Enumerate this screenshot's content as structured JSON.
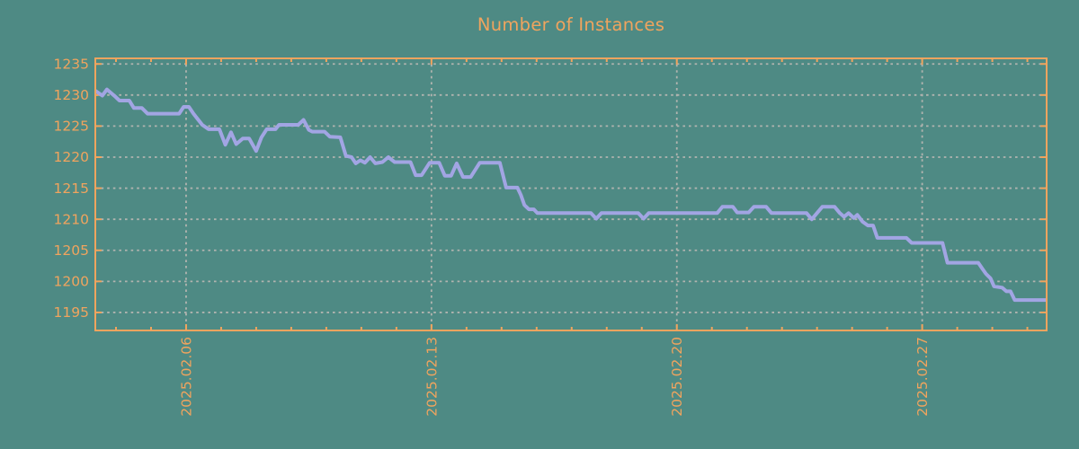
{
  "title": "Number of Instances",
  "colors": {
    "background": "#4e8a84",
    "accent": "#f0a45e",
    "line": "#a2a5e3",
    "grid": "#b1b4af"
  },
  "chart_data": {
    "type": "line",
    "title": "Number of Instances",
    "grid": "dotted",
    "legend": "none",
    "x_axis": {
      "unit": "date (day index of February 2025; 29+ = March 2025)",
      "tick_labels": [
        "2025.02.06",
        "2025.02.13",
        "2025.02.20",
        "2025.02.27"
      ],
      "tick_days": [
        6,
        13,
        20,
        27
      ],
      "minor_tick_interval_days": 1,
      "range_days": [
        3.41,
        30.55
      ]
    },
    "y_axis": {
      "ticks": [
        1195,
        1200,
        1205,
        1210,
        1215,
        1220,
        1225,
        1230,
        1235
      ],
      "range": [
        1192.1,
        1235.9
      ]
    },
    "series": [
      {
        "name": "instances",
        "points": [
          [
            3.41,
            1230.7
          ],
          [
            3.61,
            1229.9
          ],
          [
            3.74,
            1230.9
          ],
          [
            3.97,
            1229.8
          ],
          [
            4.1,
            1229.1
          ],
          [
            4.38,
            1229.1
          ],
          [
            4.51,
            1227.9
          ],
          [
            4.74,
            1227.9
          ],
          [
            4.9,
            1227.0
          ],
          [
            5.8,
            1227.0
          ],
          [
            5.93,
            1228.1
          ],
          [
            6.08,
            1228.1
          ],
          [
            6.21,
            1227.0
          ],
          [
            6.46,
            1225.2
          ],
          [
            6.64,
            1224.5
          ],
          [
            6.95,
            1224.5
          ],
          [
            7.12,
            1222.0
          ],
          [
            7.28,
            1224.0
          ],
          [
            7.43,
            1222.1
          ],
          [
            7.62,
            1223.0
          ],
          [
            7.8,
            1223.0
          ],
          [
            8.0,
            1221.0
          ],
          [
            8.15,
            1223.2
          ],
          [
            8.3,
            1224.5
          ],
          [
            8.55,
            1224.5
          ],
          [
            8.65,
            1225.2
          ],
          [
            9.2,
            1225.2
          ],
          [
            9.35,
            1226.0
          ],
          [
            9.5,
            1224.4
          ],
          [
            9.6,
            1224.1
          ],
          [
            9.95,
            1224.1
          ],
          [
            10.1,
            1223.3
          ],
          [
            10.4,
            1223.2
          ],
          [
            10.56,
            1220.2
          ],
          [
            10.72,
            1220.0
          ],
          [
            10.84,
            1219.0
          ],
          [
            10.97,
            1219.5
          ],
          [
            11.1,
            1219.1
          ],
          [
            11.25,
            1220.0
          ],
          [
            11.4,
            1219.0
          ],
          [
            11.6,
            1219.2
          ],
          [
            11.77,
            1220.0
          ],
          [
            11.95,
            1219.2
          ],
          [
            12.4,
            1219.2
          ],
          [
            12.55,
            1217.1
          ],
          [
            12.72,
            1217.1
          ],
          [
            12.95,
            1219.1
          ],
          [
            13.22,
            1219.1
          ],
          [
            13.38,
            1217.0
          ],
          [
            13.56,
            1217.0
          ],
          [
            13.72,
            1219.0
          ],
          [
            13.9,
            1216.8
          ],
          [
            14.12,
            1216.8
          ],
          [
            14.38,
            1219.1
          ],
          [
            14.95,
            1219.1
          ],
          [
            15.13,
            1215.1
          ],
          [
            15.45,
            1215.1
          ],
          [
            15.55,
            1213.9
          ],
          [
            15.65,
            1212.3
          ],
          [
            15.78,
            1211.6
          ],
          [
            15.92,
            1211.6
          ],
          [
            16.02,
            1211.0
          ],
          [
            17.55,
            1211.0
          ],
          [
            17.7,
            1210.1
          ],
          [
            17.85,
            1211.0
          ],
          [
            18.9,
            1211.0
          ],
          [
            19.05,
            1210.1
          ],
          [
            19.2,
            1211.0
          ],
          [
            21.15,
            1211.0
          ],
          [
            21.3,
            1212.0
          ],
          [
            21.6,
            1212.0
          ],
          [
            21.72,
            1211.1
          ],
          [
            22.05,
            1211.1
          ],
          [
            22.2,
            1212.0
          ],
          [
            22.55,
            1212.0
          ],
          [
            22.7,
            1211.0
          ],
          [
            23.7,
            1211.0
          ],
          [
            23.85,
            1210.0
          ],
          [
            24.15,
            1212.0
          ],
          [
            24.5,
            1212.0
          ],
          [
            24.65,
            1211.0
          ],
          [
            24.77,
            1210.4
          ],
          [
            24.9,
            1211.0
          ],
          [
            25.05,
            1210.2
          ],
          [
            25.15,
            1210.7
          ],
          [
            25.3,
            1209.6
          ],
          [
            25.45,
            1209.0
          ],
          [
            25.6,
            1209.0
          ],
          [
            25.72,
            1207.0
          ],
          [
            26.55,
            1207.0
          ],
          [
            26.7,
            1206.2
          ],
          [
            27.58,
            1206.2
          ],
          [
            27.72,
            1203.0
          ],
          [
            28.6,
            1203.0
          ],
          [
            28.72,
            1202.0
          ],
          [
            28.82,
            1201.2
          ],
          [
            28.95,
            1200.5
          ],
          [
            29.05,
            1199.2
          ],
          [
            29.28,
            1199.0
          ],
          [
            29.4,
            1198.4
          ],
          [
            29.52,
            1198.4
          ],
          [
            29.64,
            1197.0
          ],
          [
            30.55,
            1197.0
          ]
        ]
      }
    ]
  }
}
